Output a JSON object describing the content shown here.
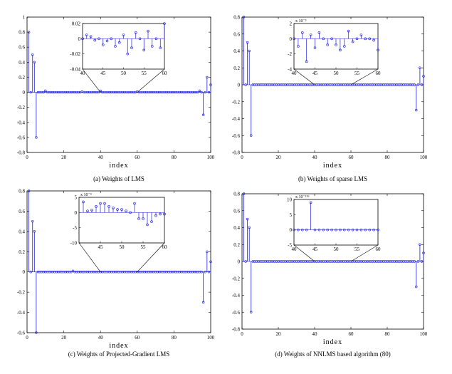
{
  "panels": [
    {
      "caption": "(a) Weights of LMS",
      "xlabel": "index",
      "xlim": [
        0,
        100
      ],
      "ylim": [
        -0.8,
        1
      ],
      "yticks": [
        "1",
        "0.8",
        "0.6",
        "0.4",
        "0.2",
        "0",
        "-0.2",
        "-0.4",
        "-0.6",
        "-0.8"
      ],
      "xticks": [
        "0",
        "20",
        "40",
        "60",
        "80",
        "100"
      ],
      "inset": {
        "xticks": [
          "40",
          "45",
          "50",
          "55",
          "60"
        ],
        "yticks": [
          "0.02",
          "0",
          "-0.02",
          "-0.04"
        ],
        "exponent": ""
      }
    },
    {
      "caption": "(b) Weights of sparse LMS",
      "xlabel": "index",
      "xlim": [
        0,
        100
      ],
      "ylim": [
        -0.8,
        0.8
      ],
      "yticks": [
        "0.8",
        "0.6",
        "0.4",
        "0.2",
        "0",
        "-0.2",
        "-0.4",
        "-0.6",
        "-0.8"
      ],
      "xticks": [
        "0",
        "20",
        "40",
        "60",
        "80",
        "100"
      ],
      "inset": {
        "xticks": [
          "40",
          "45",
          "50",
          "55",
          "60"
        ],
        "yticks": [
          "2",
          "0",
          "-2",
          "-4"
        ],
        "exponent": "x 10⁻³"
      }
    },
    {
      "caption": "(c) Weights of Projected-Gradient LMS",
      "xlabel": "index",
      "xlim": [
        0,
        100
      ],
      "ylim": [
        -0.6,
        0.8
      ],
      "yticks": [
        "0.8",
        "0.6",
        "0.4",
        "0.2",
        "0",
        "-0.2",
        "-0.4",
        "-0.6"
      ],
      "xticks": [
        "0",
        "20",
        "40",
        "60",
        "80",
        "100"
      ],
      "inset": {
        "xticks": [
          "45",
          "50",
          "55",
          "60"
        ],
        "yticks": [
          "5",
          "0",
          "-5",
          "-10"
        ],
        "exponent": "x 10⁻⁴"
      }
    },
    {
      "caption": "(d) Weights of NNLMS based algorithm (80)",
      "xlabel": "index",
      "xlim": [
        0,
        100
      ],
      "ylim": [
        -0.8,
        0.8
      ],
      "yticks": [
        "0.8",
        "0.6",
        "0.4",
        "0.2",
        "0",
        "-0.2",
        "-0.4",
        "-0.6",
        "-0.8"
      ],
      "xticks": [
        "0",
        "20",
        "40",
        "60",
        "80",
        "100"
      ],
      "inset": {
        "xticks": [
          "40",
          "45",
          "50",
          "55",
          "60"
        ],
        "yticks": [
          "10",
          "5",
          "0",
          "-5"
        ],
        "exponent": "x 10⁻¹⁵⁶"
      }
    }
  ],
  "chart_data": [
    {
      "type": "stem",
      "xlim": [
        0,
        100
      ],
      "ylim": [
        -0.8,
        1
      ],
      "series": [
        {
          "x": [
            1,
            3,
            4,
            5,
            10,
            30,
            40,
            60,
            94,
            96,
            98,
            100
          ],
          "y": [
            0.8,
            0.5,
            0.4,
            -0.6,
            0.02,
            0.01,
            0.02,
            0.01,
            0.02,
            -0.3,
            0.2,
            0.1
          ]
        }
      ],
      "inset": {
        "xlim": [
          40,
          60
        ],
        "ylim": [
          -0.04,
          0.02
        ],
        "x": [
          40,
          41,
          42,
          43,
          44,
          45,
          46,
          47,
          48,
          49,
          50,
          51,
          52,
          53,
          54,
          55,
          56,
          57,
          58,
          59,
          60
        ],
        "y": [
          0.0,
          0.005,
          0.003,
          -0.002,
          0.0,
          -0.008,
          -0.003,
          0.0,
          -0.01,
          -0.005,
          0.005,
          -0.02,
          -0.012,
          0.008,
          0.0,
          -0.015,
          0.01,
          -0.01,
          0.0,
          -0.012,
          0.02
        ]
      }
    },
    {
      "type": "stem",
      "xlim": [
        0,
        100
      ],
      "ylim": [
        -0.8,
        0.8
      ],
      "series": [
        {
          "x": [
            1,
            3,
            4,
            5,
            96,
            98,
            100
          ],
          "y": [
            0.8,
            0.5,
            0.4,
            -0.6,
            -0.3,
            0.2,
            0.1
          ]
        }
      ],
      "inset": {
        "xlim": [
          40,
          60
        ],
        "ylim": [
          -4,
          2
        ],
        "x": [
          40,
          41,
          42,
          43,
          44,
          45,
          46,
          47,
          48,
          49,
          50,
          51,
          52,
          53,
          54,
          55,
          56,
          57,
          58,
          59,
          60
        ],
        "y": [
          0.0,
          -1.0,
          0.8,
          -3.0,
          0.5,
          -1.2,
          0.8,
          0.0,
          -0.8,
          0.0,
          -0.8,
          -1.5,
          -1.0,
          1.0,
          -0.4,
          0.0,
          0.5,
          0.0,
          0.0,
          -0.2,
          -1.5
        ]
      }
    },
    {
      "type": "stem",
      "xlim": [
        0,
        100
      ],
      "ylim": [
        -0.6,
        0.8
      ],
      "series": [
        {
          "x": [
            1,
            3,
            4,
            5,
            25,
            95,
            96,
            98,
            100
          ],
          "y": [
            0.8,
            0.5,
            0.4,
            -0.6,
            0.01,
            0.0,
            -0.3,
            0.2,
            0.1
          ]
        }
      ],
      "inset": {
        "xlim": [
          40,
          60
        ],
        "ylim": [
          -10,
          5
        ],
        "x": [
          41,
          42,
          43,
          44,
          45,
          46,
          47,
          48,
          49,
          50,
          51,
          52,
          53,
          54,
          55,
          56,
          57,
          58,
          59,
          60
        ],
        "y": [
          3.5,
          0.5,
          0.8,
          2.0,
          3.0,
          3.0,
          2.0,
          1.5,
          1.0,
          1.0,
          0.5,
          0.0,
          3.0,
          -2.0,
          -2.0,
          -4.0,
          -3.0,
          -1.0,
          -0.5,
          -0.5
        ]
      }
    },
    {
      "type": "stem",
      "xlim": [
        0,
        100
      ],
      "ylim": [
        -0.8,
        0.8
      ],
      "series": [
        {
          "x": [
            1,
            3,
            4,
            5,
            96,
            98,
            100
          ],
          "y": [
            0.8,
            0.5,
            0.4,
            -0.6,
            -0.3,
            0.2,
            0.1
          ]
        }
      ],
      "inset": {
        "xlim": [
          40,
          60
        ],
        "ylim": [
          -5,
          10
        ],
        "x": [
          40,
          41,
          42,
          43,
          44,
          45,
          46,
          47,
          48,
          49,
          50,
          51,
          52,
          53,
          54,
          55,
          56,
          57,
          58,
          59,
          60
        ],
        "y": [
          0,
          0,
          0,
          0,
          9.0,
          0,
          0,
          0,
          0,
          0,
          0,
          0,
          0,
          0,
          0,
          0,
          0,
          0,
          0,
          0,
          0
        ]
      }
    }
  ]
}
